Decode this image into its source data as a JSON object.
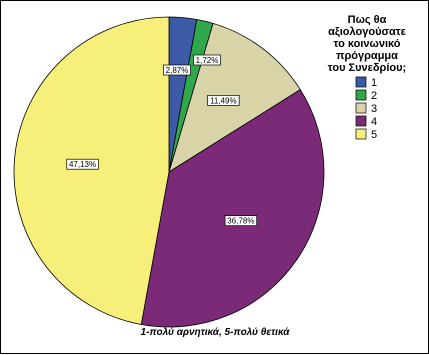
{
  "chart_data": {
    "type": "pie",
    "legend_title": "Πως θα αξιολογούσατε το κοινωνικό πρόγραμμα του Συνεδρίου;",
    "legend_title_lines": [
      "Πως θα",
      "αξιολογούσατε",
      "το κοινωνικό",
      "πρόγραμμα",
      "του Συνεδρίου;"
    ],
    "categories": [
      "1",
      "2",
      "3",
      "4",
      "5"
    ],
    "values": [
      2.87,
      1.72,
      11.49,
      36.78,
      47.13
    ],
    "labels": [
      "2,87%",
      "1,72%",
      "11,49%",
      "36,78%",
      "47,13%"
    ],
    "colors": [
      "#3c5aa6",
      "#2ea84b",
      "#d8d4a8",
      "#7b2a78",
      "#f6f07a"
    ],
    "legend_position": "top-right",
    "footnote": "1-πολύ αρνητικά, 5-πολύ θετικά"
  }
}
